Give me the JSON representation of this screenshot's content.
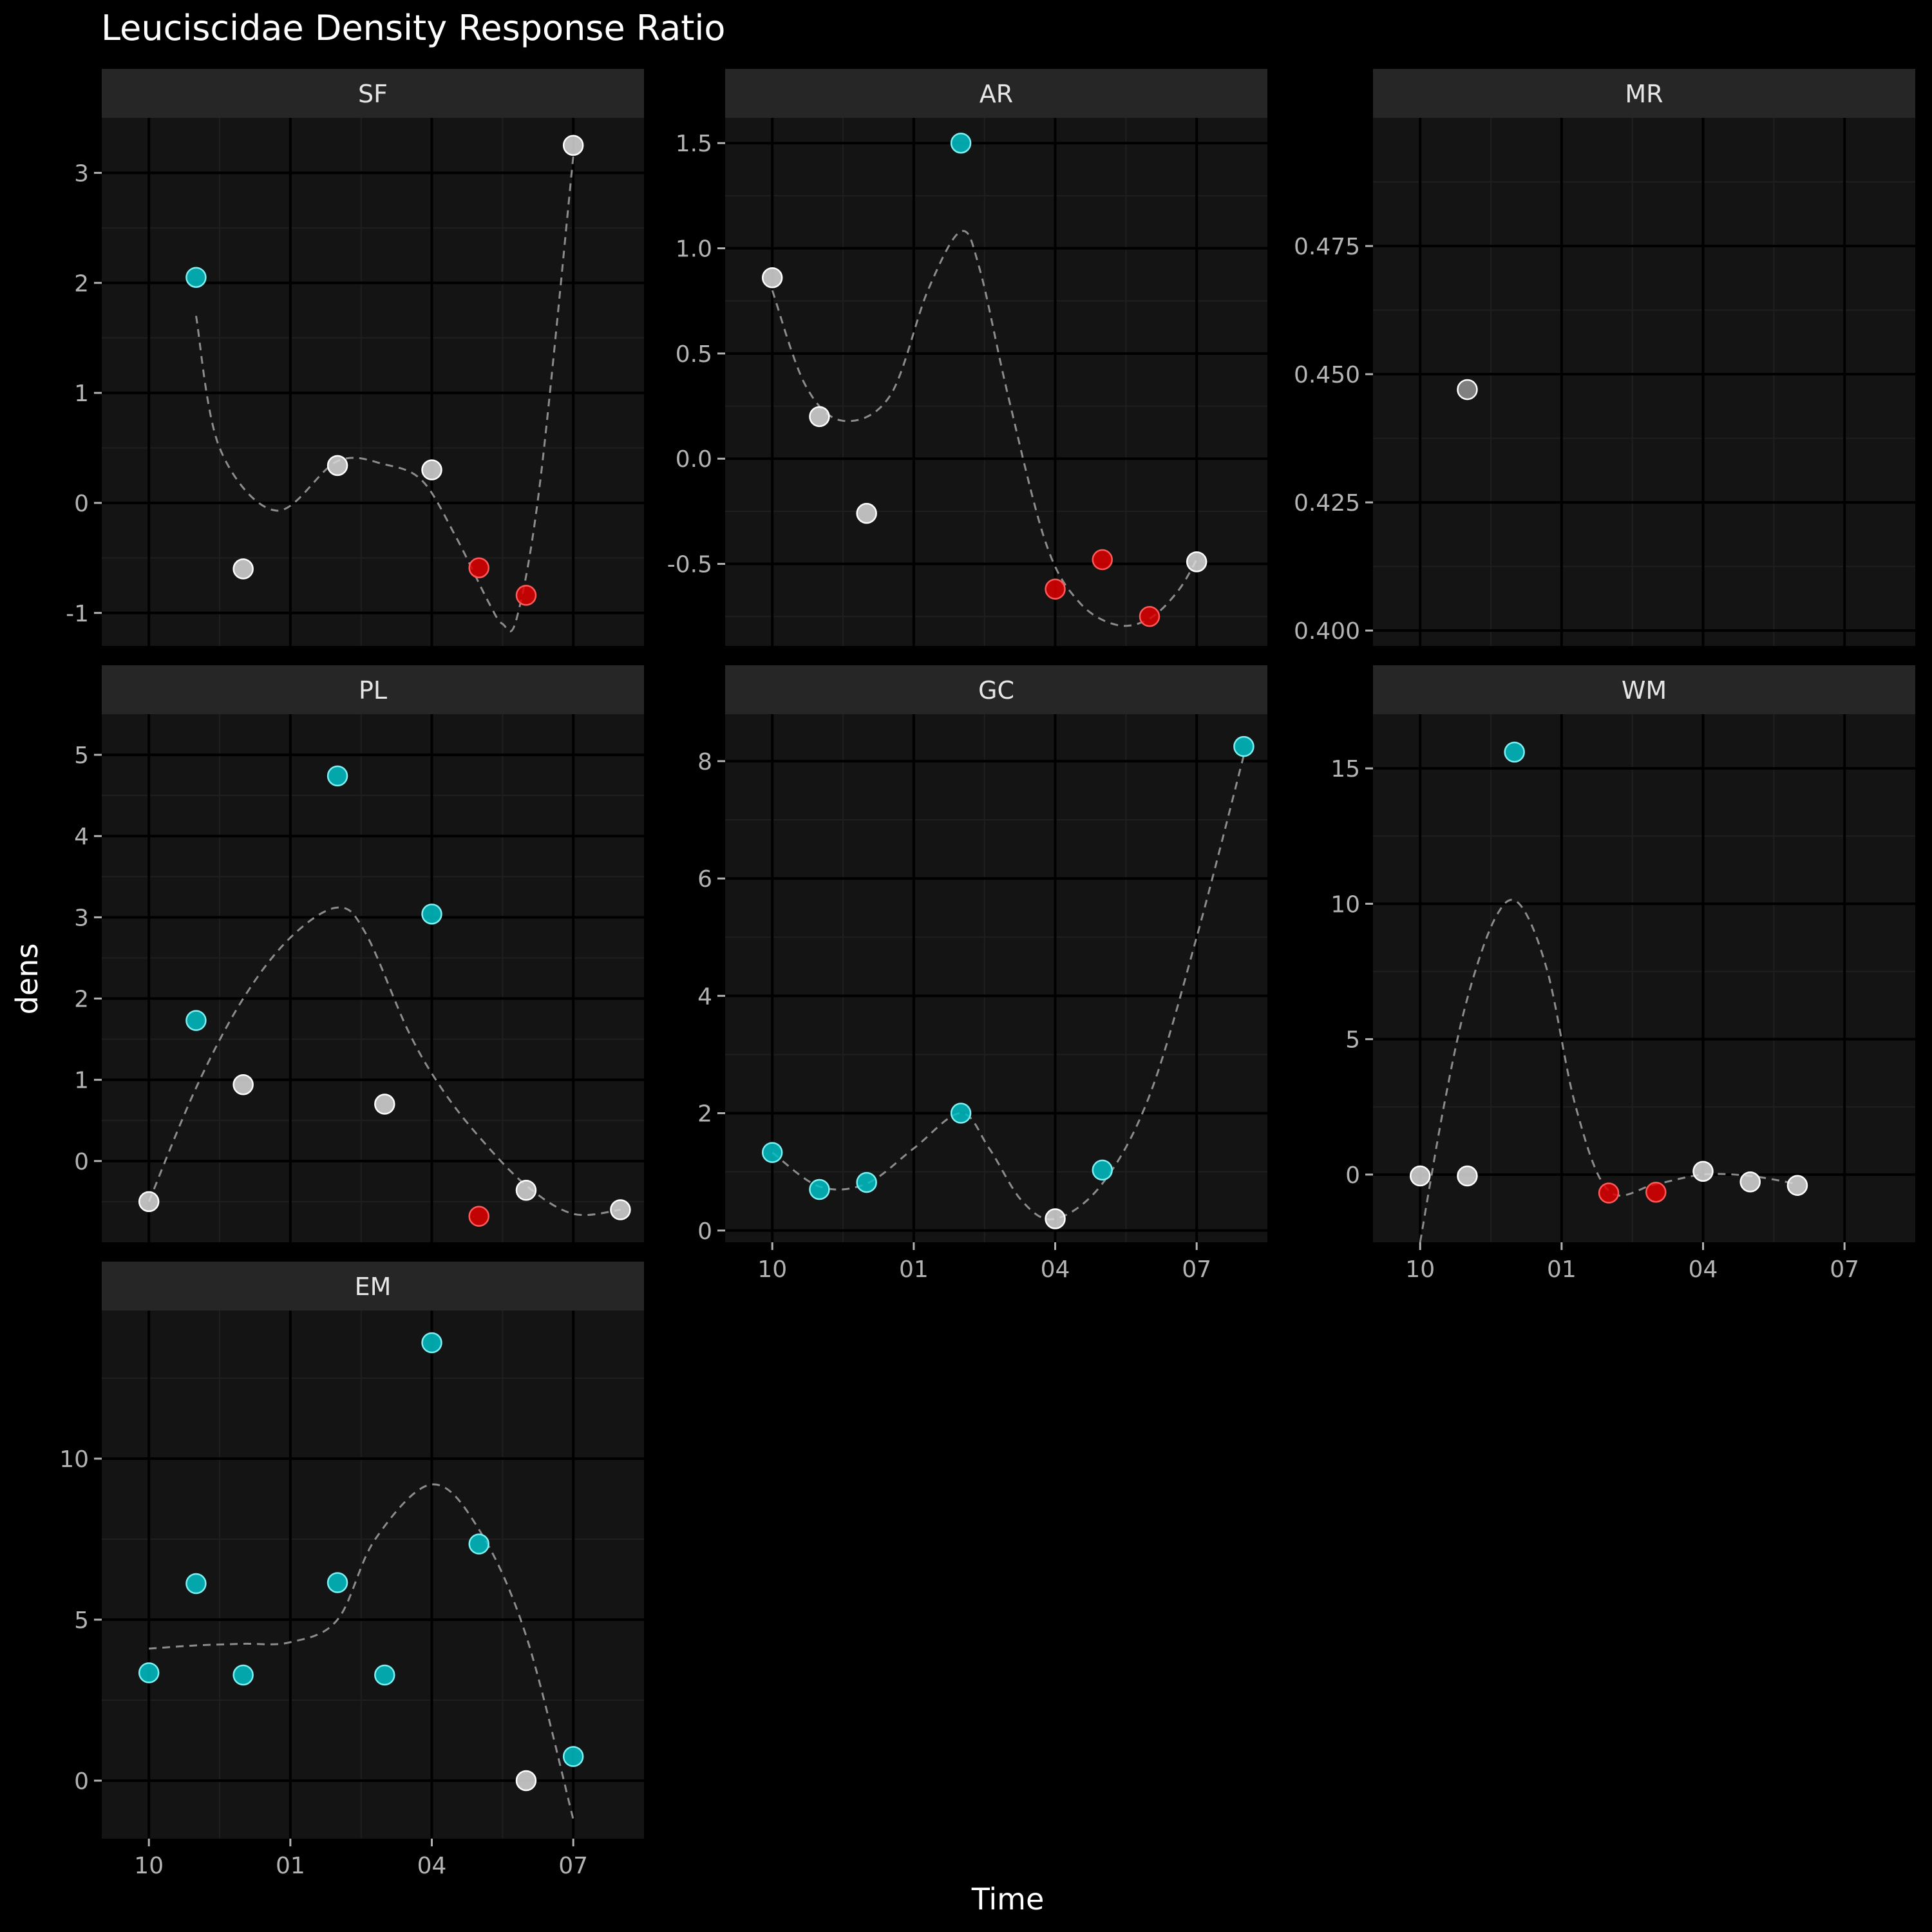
{
  "chart_data": {
    "type": "scatter",
    "title": "Leuciscidae Density Response Ratio",
    "xlabel": "Time",
    "ylabel": "dens",
    "x_tick_labels": [
      "10",
      "01",
      "04",
      "07"
    ],
    "x_tick_values": [
      0,
      3,
      6,
      9
    ],
    "colors": {
      "background": "#000000",
      "panel": "#141414",
      "strip": "#262626",
      "grid_major": "#000000",
      "grid_minor": "#1f1f1f",
      "point_grey": "#d9d9d9",
      "point_cyan": "#00bfc4",
      "point_red": "#e00000",
      "trend": "#8c8c8c"
    },
    "facets": [
      {
        "name": "SF",
        "ylim": [
          -1.3,
          3.5
        ],
        "yticks": [
          -1,
          0,
          1,
          2,
          3
        ],
        "ytick_labels": [
          "-1",
          "0",
          "1",
          "2",
          "3"
        ],
        "points": [
          {
            "x": 1,
            "y": 2.05,
            "group": "cyan"
          },
          {
            "x": 2,
            "y": -0.6,
            "group": "grey"
          },
          {
            "x": 4,
            "y": 0.34,
            "group": "grey"
          },
          {
            "x": 6,
            "y": 0.3,
            "group": "grey"
          },
          {
            "x": 7,
            "y": -0.59,
            "group": "red"
          },
          {
            "x": 8,
            "y": -0.84,
            "group": "red"
          },
          {
            "x": 9,
            "y": 3.25,
            "group": "grey"
          }
        ],
        "trend": [
          [
            1,
            1.7
          ],
          [
            1.5,
            0.5
          ],
          [
            2.7,
            -0.07
          ],
          [
            4,
            0.38
          ],
          [
            5,
            0.35
          ],
          [
            5.8,
            0.2
          ],
          [
            6.5,
            -0.3
          ],
          [
            7.2,
            -0.9
          ],
          [
            7.5,
            -1.1
          ],
          [
            7.8,
            -1.05
          ],
          [
            8.3,
            0.2
          ],
          [
            9,
            3.15
          ]
        ]
      },
      {
        "name": "AR",
        "ylim": [
          -0.89,
          1.62
        ],
        "yticks": [
          -0.5,
          0,
          0.5,
          1,
          1.5
        ],
        "ytick_labels": [
          "-0.5",
          "0.0",
          "0.5",
          "1.0",
          "1.5"
        ],
        "points": [
          {
            "x": 0,
            "y": 0.86,
            "group": "grey"
          },
          {
            "x": 1,
            "y": 0.2,
            "group": "grey"
          },
          {
            "x": 2,
            "y": -0.26,
            "group": "grey"
          },
          {
            "x": 4,
            "y": 1.5,
            "group": "cyan"
          },
          {
            "x": 6,
            "y": -0.62,
            "group": "red"
          },
          {
            "x": 7,
            "y": -0.48,
            "group": "red"
          },
          {
            "x": 8,
            "y": -0.75,
            "group": "red"
          },
          {
            "x": 9,
            "y": -0.49,
            "group": "grey"
          }
        ],
        "trend": [
          [
            0,
            0.8
          ],
          [
            0.7,
            0.35
          ],
          [
            1.5,
            0.18
          ],
          [
            2.5,
            0.3
          ],
          [
            3.3,
            0.8
          ],
          [
            4,
            1.08
          ],
          [
            4.4,
            0.9
          ],
          [
            5,
            0.3
          ],
          [
            5.8,
            -0.4
          ],
          [
            6.5,
            -0.68
          ],
          [
            7.3,
            -0.79
          ],
          [
            8,
            -0.76
          ],
          [
            8.6,
            -0.63
          ],
          [
            9,
            -0.48
          ]
        ]
      },
      {
        "name": "MR",
        "ylim": [
          0.397,
          0.5
        ],
        "yticks": [
          0.4,
          0.425,
          0.45,
          0.475
        ],
        "ytick_labels": [
          "0.400",
          "0.425",
          "0.450",
          "0.475"
        ],
        "points": [
          {
            "x": 1,
            "y": 0.447,
            "group": "grey"
          }
        ],
        "trend": []
      },
      {
        "name": "PL",
        "ylim": [
          -1.0,
          5.5
        ],
        "yticks": [
          0,
          1,
          2,
          3,
          4,
          5
        ],
        "ytick_labels": [
          "0",
          "1",
          "2",
          "3",
          "4",
          "5"
        ],
        "points": [
          {
            "x": 0,
            "y": -0.5,
            "group": "grey"
          },
          {
            "x": 1,
            "y": 1.73,
            "group": "cyan"
          },
          {
            "x": 2,
            "y": 0.94,
            "group": "grey"
          },
          {
            "x": 4,
            "y": 4.74,
            "group": "cyan"
          },
          {
            "x": 5,
            "y": 0.7,
            "group": "grey"
          },
          {
            "x": 6,
            "y": 3.04,
            "group": "cyan"
          },
          {
            "x": 7,
            "y": -0.68,
            "group": "red"
          },
          {
            "x": 8,
            "y": -0.36,
            "group": "grey"
          },
          {
            "x": 10,
            "y": -0.6,
            "group": "grey"
          }
        ],
        "trend": [
          [
            0,
            -0.5
          ],
          [
            1,
            0.9
          ],
          [
            2,
            2.0
          ],
          [
            3,
            2.75
          ],
          [
            4,
            3.12
          ],
          [
            4.6,
            2.8
          ],
          [
            5.5,
            1.6
          ],
          [
            6.2,
            0.9
          ],
          [
            7,
            0.3
          ],
          [
            8,
            -0.3
          ],
          [
            9,
            -0.65
          ],
          [
            10,
            -0.6
          ]
        ]
      },
      {
        "name": "GC",
        "ylim": [
          -0.2,
          8.8
        ],
        "yticks": [
          0,
          2,
          4,
          6,
          8
        ],
        "ytick_labels": [
          "0",
          "2",
          "4",
          "6",
          "8"
        ],
        "points": [
          {
            "x": 0,
            "y": 1.33,
            "group": "cyan"
          },
          {
            "x": 1,
            "y": 0.7,
            "group": "cyan"
          },
          {
            "x": 2,
            "y": 0.82,
            "group": "cyan"
          },
          {
            "x": 4,
            "y": 2.0,
            "group": "cyan"
          },
          {
            "x": 6,
            "y": 0.2,
            "group": "grey"
          },
          {
            "x": 7,
            "y": 1.03,
            "group": "cyan"
          },
          {
            "x": 10,
            "y": 8.25,
            "group": "cyan"
          }
        ],
        "trend": [
          [
            0,
            1.33
          ],
          [
            1,
            0.75
          ],
          [
            2,
            0.8
          ],
          [
            3,
            1.4
          ],
          [
            4,
            2.0
          ],
          [
            4.6,
            1.4
          ],
          [
            5.3,
            0.5
          ],
          [
            6,
            0.2
          ],
          [
            7,
            0.8
          ],
          [
            8,
            2.3
          ],
          [
            9,
            5.0
          ],
          [
            10,
            8.1
          ]
        ]
      },
      {
        "name": "WM",
        "ylim": [
          -2.5,
          17.0
        ],
        "yticks": [
          0,
          5,
          10,
          15
        ],
        "ytick_labels": [
          "0",
          "5",
          "10",
          "15"
        ],
        "points": [
          {
            "x": 0,
            "y": -0.05,
            "group": "grey"
          },
          {
            "x": 1,
            "y": -0.05,
            "group": "grey"
          },
          {
            "x": 2,
            "y": 15.6,
            "group": "cyan"
          },
          {
            "x": 4,
            "y": -0.68,
            "group": "red"
          },
          {
            "x": 5,
            "y": -0.65,
            "group": "red"
          },
          {
            "x": 6,
            "y": 0.12,
            "group": "grey"
          },
          {
            "x": 7,
            "y": -0.27,
            "group": "grey"
          },
          {
            "x": 8,
            "y": -0.4,
            "group": "grey"
          }
        ],
        "trend": [
          [
            0,
            -2.5
          ],
          [
            0.5,
            2.5
          ],
          [
            1,
            6.5
          ],
          [
            1.6,
            9.5
          ],
          [
            2.1,
            10.0
          ],
          [
            2.7,
            7.5
          ],
          [
            3.3,
            2.5
          ],
          [
            4,
            -0.6
          ],
          [
            5,
            -0.35
          ],
          [
            6,
            0.0
          ],
          [
            7,
            -0.05
          ],
          [
            8,
            -0.35
          ]
        ]
      },
      {
        "name": "EM",
        "ylim": [
          -1.8,
          14.6
        ],
        "yticks": [
          0,
          5,
          10
        ],
        "ytick_labels": [
          "0",
          "5",
          "10"
        ],
        "points": [
          {
            "x": 0,
            "y": 3.35,
            "group": "cyan"
          },
          {
            "x": 1,
            "y": 6.12,
            "group": "cyan"
          },
          {
            "x": 2,
            "y": 3.28,
            "group": "cyan"
          },
          {
            "x": 4,
            "y": 6.15,
            "group": "cyan"
          },
          {
            "x": 5,
            "y": 3.28,
            "group": "cyan"
          },
          {
            "x": 6,
            "y": 13.6,
            "group": "cyan"
          },
          {
            "x": 7,
            "y": 7.35,
            "group": "cyan"
          },
          {
            "x": 8,
            "y": 0.0,
            "group": "grey"
          },
          {
            "x": 9,
            "y": 0.75,
            "group": "cyan"
          }
        ],
        "trend": [
          [
            0,
            4.1
          ],
          [
            1,
            4.2
          ],
          [
            2,
            4.25
          ],
          [
            3,
            4.3
          ],
          [
            4,
            5.0
          ],
          [
            4.8,
            7.5
          ],
          [
            6,
            9.2
          ],
          [
            7,
            7.8
          ],
          [
            8,
            4.5
          ],
          [
            9,
            -1.2
          ]
        ]
      }
    ]
  }
}
